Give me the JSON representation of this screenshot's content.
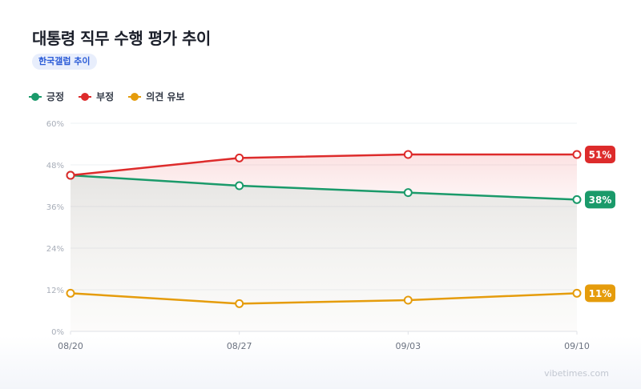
{
  "header": {
    "title": "대통령 직무 수행 평가 추이",
    "badge": "한국갤럽 추이"
  },
  "footer": {
    "source": "vibetimes.com"
  },
  "chart_data": {
    "type": "line",
    "title": "대통령 직무 수행 평가 추이",
    "subtitle": "한국갤럽 추이",
    "categories": [
      "08/20",
      "08/27",
      "09/03",
      "09/10"
    ],
    "y_ticks": [
      0,
      12,
      24,
      36,
      48,
      60
    ],
    "y_tick_suffix": "%",
    "ylim": [
      0,
      60
    ],
    "grid": true,
    "legend_position": "top-left",
    "series": [
      {
        "name": "긍정",
        "color": "#1a9a6a",
        "values": [
          45,
          42,
          40,
          38
        ],
        "end_label": "38%"
      },
      {
        "name": "부정",
        "color": "#dd2b2b",
        "values": [
          45,
          50,
          51,
          51
        ],
        "end_label": "51%"
      },
      {
        "name": "의견 유보",
        "color": "#e59c0c",
        "values": [
          11,
          8,
          9,
          11
        ],
        "end_label": "11%"
      }
    ]
  }
}
